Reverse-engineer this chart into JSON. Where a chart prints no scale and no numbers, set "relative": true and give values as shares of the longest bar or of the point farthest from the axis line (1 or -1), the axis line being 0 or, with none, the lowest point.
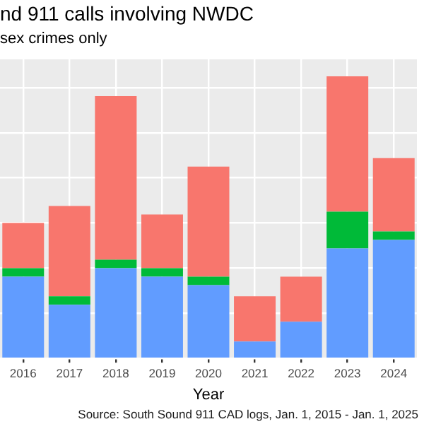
{
  "chart_data": {
    "type": "bar",
    "title": "nd 911 calls involving NWDC",
    "subtitle": "sex crimes only",
    "xlabel": "Year",
    "annotations": [
      "Source: South Sound 911 CAD logs, Jan. 1, 2015 - Jan. 1, 2025"
    ],
    "categories": [
      "2016",
      "2017",
      "2018",
      "2019",
      "2020",
      "2021",
      "2022",
      "2023",
      "2024"
    ],
    "stacked": true,
    "relative": true,
    "grid": true,
    "legend": false,
    "series": [
      {
        "color": "#619cff",
        "values": [
          0.29,
          0.19,
          0.32,
          0.29,
          0.26,
          0.06,
          0.13,
          0.39,
          0.42
        ]
      },
      {
        "color": "#00ba38",
        "values": [
          0.03,
          0.03,
          0.03,
          0.03,
          0.03,
          0,
          0,
          0.13,
          0.03
        ]
      },
      {
        "color": "#f8766d",
        "values": [
          0.16,
          0.32,
          0.58,
          0.19,
          0.39,
          0.16,
          0.16,
          0.48,
          0.26
        ]
      }
    ]
  }
}
